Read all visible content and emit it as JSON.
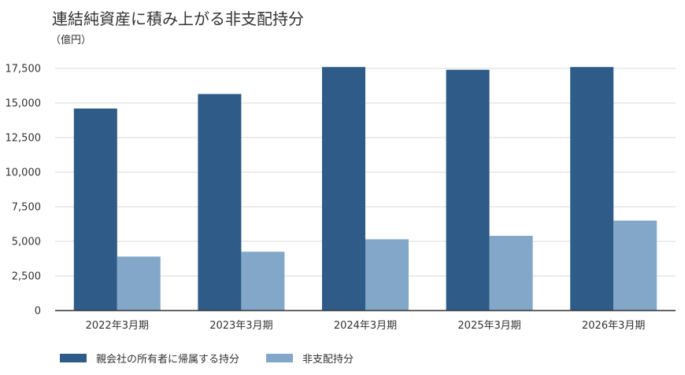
{
  "title": "連結純資産に積み上がる非支配持分",
  "unit_label": "（億円）",
  "colors": {
    "parent": "#2e5b87",
    "nci": "#82a7c9",
    "grid": "#d9d9d9",
    "axis": "#333333"
  },
  "chart_data": {
    "type": "bar",
    "title": "連結純資産に積み上がる非支配持分",
    "ylabel": "（億円）",
    "xlabel": "",
    "ylim": [
      0,
      17500
    ],
    "yticks": [
      0,
      2500,
      5000,
      7500,
      10000,
      12500,
      15000,
      17500
    ],
    "ytick_labels": [
      "0",
      "2,500",
      "5,000",
      "7,500",
      "10,000",
      "12,500",
      "15,000",
      "17,500"
    ],
    "categories": [
      "2022年3月期",
      "2023年3月期",
      "2024年3月期",
      "2025年3月期",
      "2026年3月期"
    ],
    "series": [
      {
        "name": "親会社の所有者に帰属する持分",
        "values": [
          14600,
          15650,
          17600,
          17400,
          17600
        ]
      },
      {
        "name": "非支配持分",
        "values": [
          3900,
          4250,
          5150,
          5400,
          6500
        ]
      }
    ],
    "grid": true,
    "legend": "bottom-left"
  }
}
